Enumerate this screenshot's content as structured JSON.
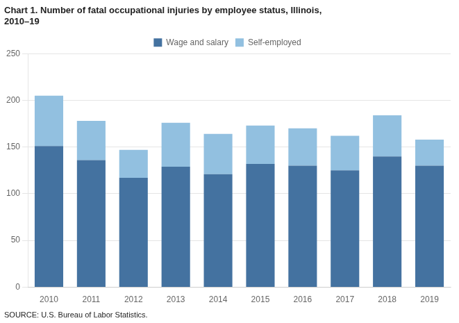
{
  "chart_data": {
    "type": "bar",
    "title": [
      "Chart 1. Number of fatal occupational injuries by employee status, Illinois,",
      "2010–19"
    ],
    "annotations": [
      "SOURCE: U.S. Bureau of Labor Statistics."
    ],
    "categories": [
      "2010",
      "2011",
      "2012",
      "2013",
      "2014",
      "2015",
      "2016",
      "2017",
      "2018",
      "2019"
    ],
    "series": [
      {
        "name": "Wage and salary",
        "color": "#4472a0",
        "values": [
          151,
          136,
          117,
          129,
          121,
          132,
          130,
          125,
          140,
          130
        ]
      },
      {
        "name": "Self-employed",
        "color": "#92c0e0",
        "values": [
          54,
          42,
          30,
          47,
          43,
          41,
          40,
          37,
          44,
          28
        ]
      }
    ],
    "stacked": true,
    "ylim": [
      0,
      250
    ],
    "yticks": [
      0,
      50,
      100,
      150,
      200,
      250
    ],
    "grid": true,
    "legend": "top"
  }
}
